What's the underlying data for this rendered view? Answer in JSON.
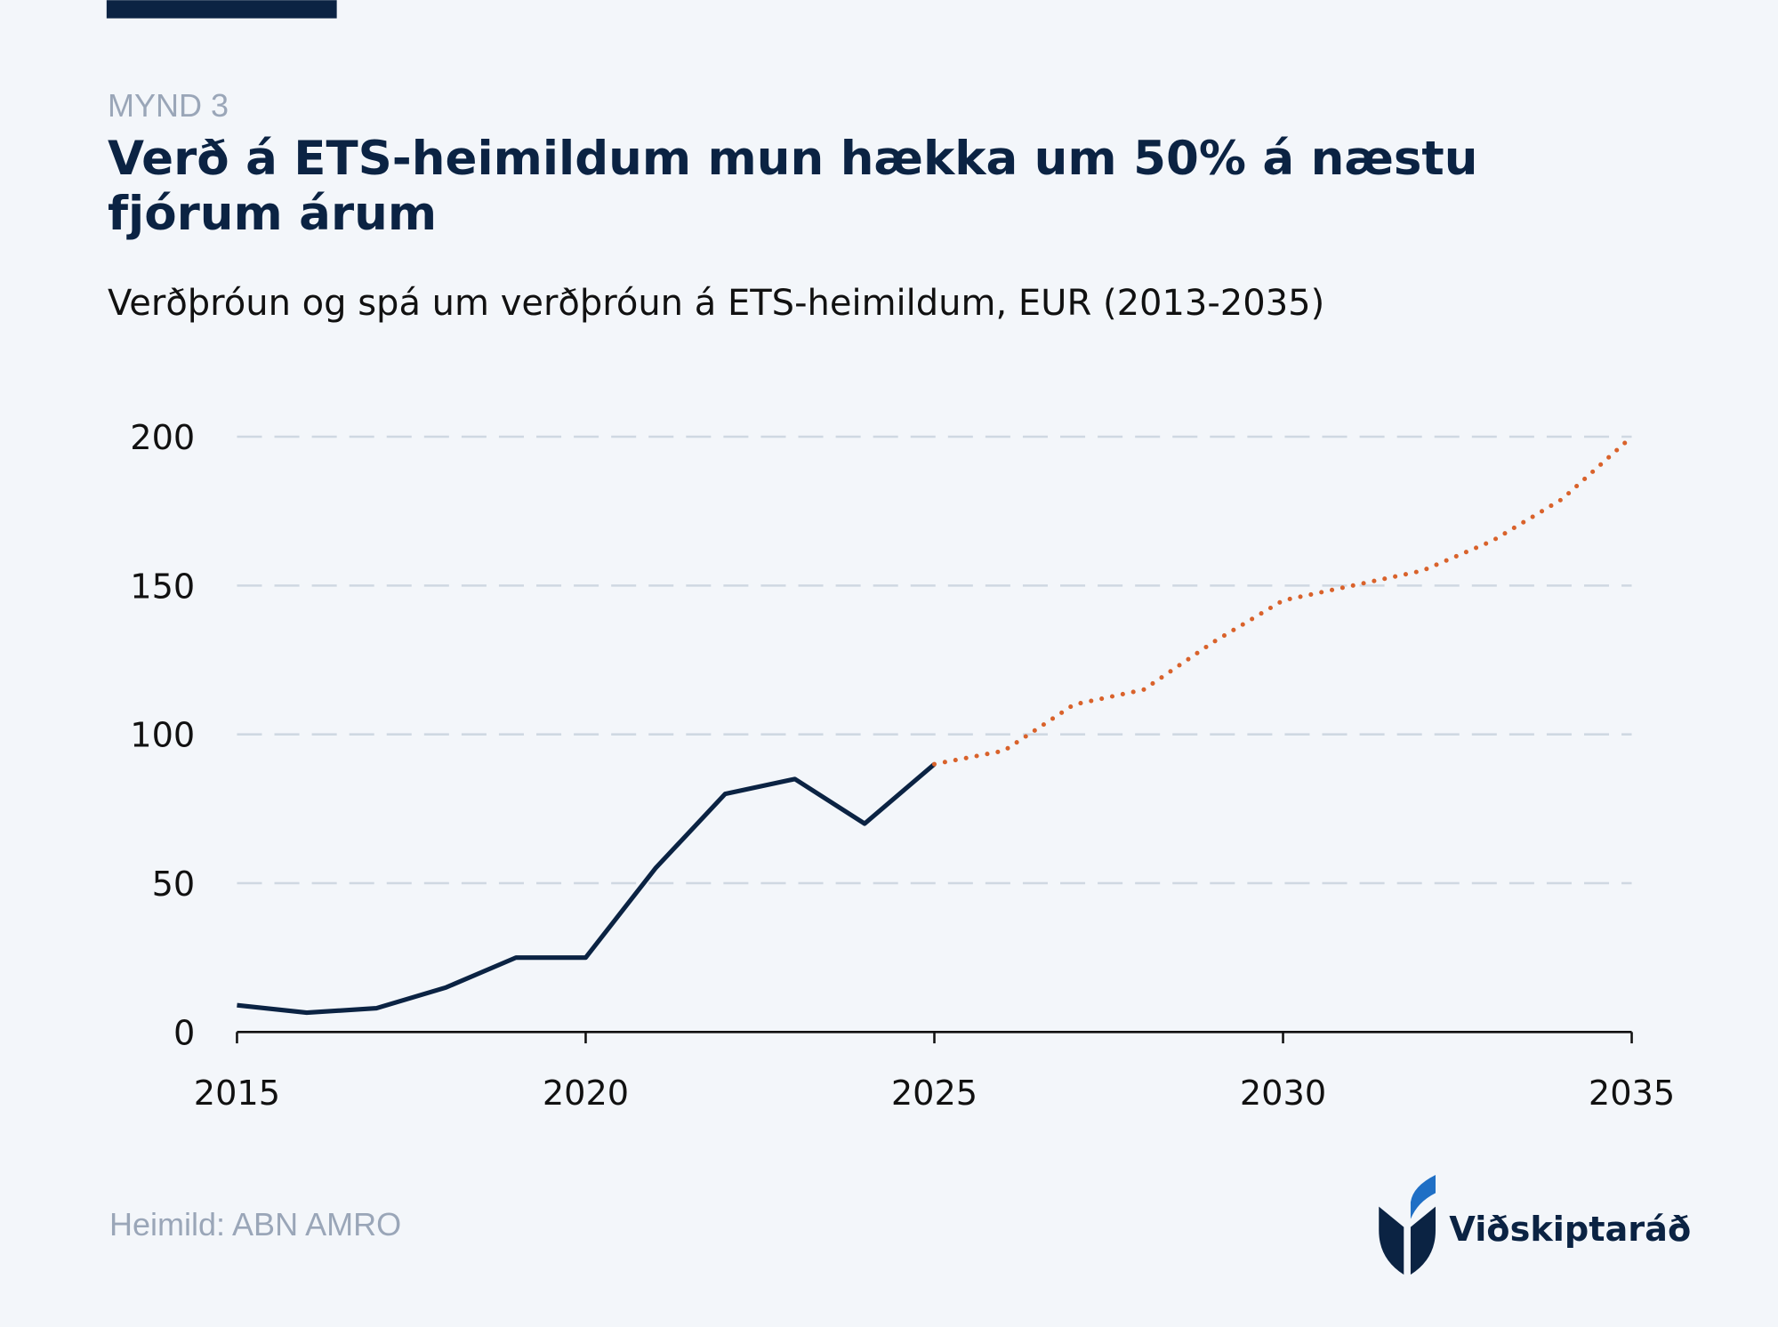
{
  "chart_data": {
    "type": "line",
    "label": "MYND 3",
    "title": "Verð á ETS-heimildum mun hækka um 50% á næstu fjórum árum",
    "subtitle": "Verðþróun og spá um verðþróun á ETS-heimildum, EUR (2013-2035)",
    "source": "Heimild: ABN AMRO",
    "brand": "Viðskiptaráð",
    "x": [
      2015,
      2016,
      2017,
      2018,
      2019,
      2020,
      2021,
      2022,
      2023,
      2024,
      2025,
      2026,
      2027,
      2028,
      2029,
      2030,
      2031,
      2032,
      2033,
      2034,
      2035
    ],
    "series": [
      {
        "color": "#0b2343",
        "style": "solid",
        "values": [
          9,
          6.5,
          8,
          15,
          25,
          25,
          55,
          80,
          85,
          70,
          90,
          null,
          null,
          null,
          null,
          null,
          null,
          null,
          null,
          null,
          null
        ]
      },
      {
        "color": "#d9622b",
        "style": "dotted",
        "values": [
          null,
          null,
          null,
          null,
          null,
          null,
          null,
          null,
          null,
          null,
          90,
          94.5,
          110,
          115,
          131,
          145,
          150,
          155,
          165,
          179,
          200
        ]
      }
    ],
    "xlim": [
      2015,
      2035
    ],
    "xticks": [
      2015,
      2020,
      2025,
      2030,
      2035
    ],
    "ylim": [
      0,
      200
    ],
    "yticks": [
      0,
      50,
      100,
      150,
      200
    ],
    "grid": true
  }
}
